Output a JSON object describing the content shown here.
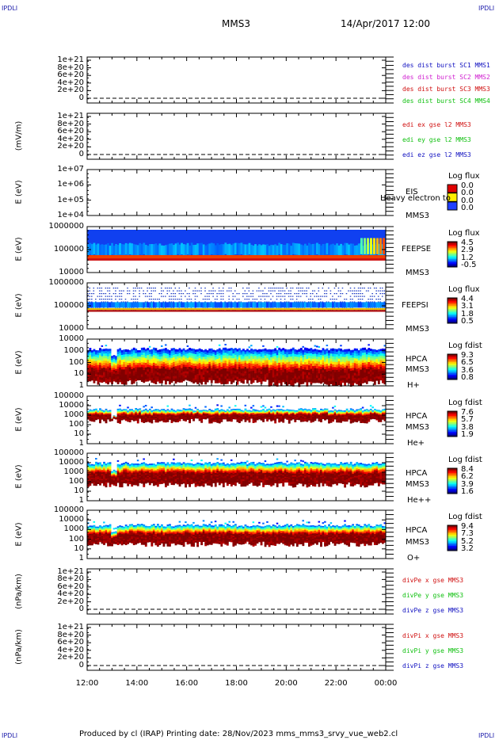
{
  "corners": {
    "tl": "IPDLI",
    "tr": "IPDLI",
    "bl": "IPDLI",
    "br": "IPDLI"
  },
  "header": {
    "spacecraft": "MMS3",
    "datetime": "14/Apr/2017 12:00"
  },
  "footer": {
    "text": "Produced by cl (IRAP)   Printing date: 28/Nov/2023   mms_mms3_srvy_vue_web2.cl"
  },
  "x_axis": {
    "ticks": [
      "12:00",
      "14:00",
      "16:00",
      "18:00",
      "20:00",
      "22:00",
      "00:00"
    ]
  },
  "colors": {
    "blue": "#1010c0",
    "magenta": "#d020d0",
    "red": "#d01010",
    "green": "#10c010"
  },
  "chart_data": [
    {
      "type": "line",
      "ylabel": "",
      "yticks": [
        "1e+21",
        "8e+20",
        "6e+20",
        "4e+20",
        "2e+20",
        "0"
      ],
      "ylim": [
        0,
        1e+21
      ],
      "legend": [
        {
          "name": "des dist burst SC1 MMS1",
          "color": "blue"
        },
        {
          "name": "des dist burst SC2 MMS2",
          "color": "magenta"
        },
        {
          "name": "des dist burst SC3 MMS3",
          "color": "red"
        },
        {
          "name": "des dist burst SC4 MMS4",
          "color": "green"
        }
      ]
    },
    {
      "type": "line",
      "ylabel": "(mV/m)",
      "yticks": [
        "1e+21",
        "8e+20",
        "6e+20",
        "4e+20",
        "2e+20",
        "0"
      ],
      "ylim": [
        0,
        1e+21
      ],
      "legend": [
        {
          "name": "edi ex gse l2 MMS3",
          "color": "red"
        },
        {
          "name": "edi ey gse l2 MMS3",
          "color": "green"
        },
        {
          "name": "edi ez gse l2 MMS3",
          "color": "blue"
        }
      ]
    },
    {
      "type": "heatmap",
      "ylabel": "E (eV)",
      "yticks": [
        "1e+07",
        "1e+06",
        "1e+05",
        "1e+04"
      ],
      "instrument": [
        "EIS",
        "MMS3"
      ],
      "overlay": "Heavy electron to",
      "cbtitle": "Log flux",
      "cbvals": [
        "0.0",
        "0.0",
        "0.0",
        "0.0"
      ]
    },
    {
      "type": "heatmap",
      "ylabel": "E (eV)",
      "yticks": [
        "1000000",
        "100000",
        "10000"
      ],
      "instrument": [
        "FEEPSE",
        "MMS3"
      ],
      "cbtitle": "Log flux",
      "cbvals": [
        "4.5",
        "2.9",
        "1.2",
        "-0.5"
      ]
    },
    {
      "type": "heatmap",
      "ylabel": "E (eV)",
      "yticks": [
        "1000000",
        "100000",
        "10000"
      ],
      "instrument": [
        "FEEPSI",
        "MMS3"
      ],
      "cbtitle": "Log flux",
      "cbvals": [
        "4.4",
        "3.1",
        "1.8",
        "0.5"
      ]
    },
    {
      "type": "heatmap",
      "ylabel": "E (eV)",
      "yticks": [
        "10000",
        "1000",
        "100",
        "10",
        "1"
      ],
      "instrument": [
        "HPCA",
        "MMS3",
        "H+"
      ],
      "cbtitle": "Log fdist",
      "cbvals": [
        "9.3",
        "6.5",
        "3.6",
        "0.8"
      ]
    },
    {
      "type": "heatmap",
      "ylabel": "E (eV)",
      "yticks": [
        "100000",
        "10000",
        "1000",
        "100",
        "10",
        "1"
      ],
      "instrument": [
        "HPCA",
        "MMS3",
        "He+"
      ],
      "cbtitle": "Log fdist",
      "cbvals": [
        "7.6",
        "5.7",
        "3.8",
        "1.9"
      ]
    },
    {
      "type": "heatmap",
      "ylabel": "E (eV)",
      "yticks": [
        "100000",
        "10000",
        "1000",
        "100",
        "10",
        "1"
      ],
      "instrument": [
        "HPCA",
        "MMS3",
        "He++"
      ],
      "cbtitle": "Log fdist",
      "cbvals": [
        "8.4",
        "6.2",
        "3.9",
        "1.6"
      ]
    },
    {
      "type": "heatmap",
      "ylabel": "E (eV)",
      "yticks": [
        "100000",
        "10000",
        "1000",
        "100",
        "10",
        "1"
      ],
      "instrument": [
        "HPCA",
        "MMS3",
        "O+"
      ],
      "cbtitle": "Log fdist",
      "cbvals": [
        "9.4",
        "7.3",
        "5.2",
        "3.2"
      ]
    },
    {
      "type": "line",
      "ylabel": "(nPa/km)",
      "yticks": [
        "1e+21",
        "8e+20",
        "6e+20",
        "4e+20",
        "2e+20",
        "0"
      ],
      "ylim": [
        0,
        1e+21
      ],
      "legend": [
        {
          "name": "divPe x gse MMS3",
          "color": "red"
        },
        {
          "name": "divPe y gse MMS3",
          "color": "green"
        },
        {
          "name": "divPe z gse MMS3",
          "color": "blue"
        }
      ]
    },
    {
      "type": "line",
      "ylabel": "(nPa/km)",
      "yticks": [
        "1e+21",
        "8e+20",
        "6e+20",
        "4e+20",
        "2e+20",
        "0"
      ],
      "ylim": [
        0,
        1e+21
      ],
      "legend": [
        {
          "name": "divPi x gse MMS3",
          "color": "red"
        },
        {
          "name": "divPi y gse MMS3",
          "color": "green"
        },
        {
          "name": "divPi z gse MMS3",
          "color": "blue"
        }
      ]
    }
  ]
}
